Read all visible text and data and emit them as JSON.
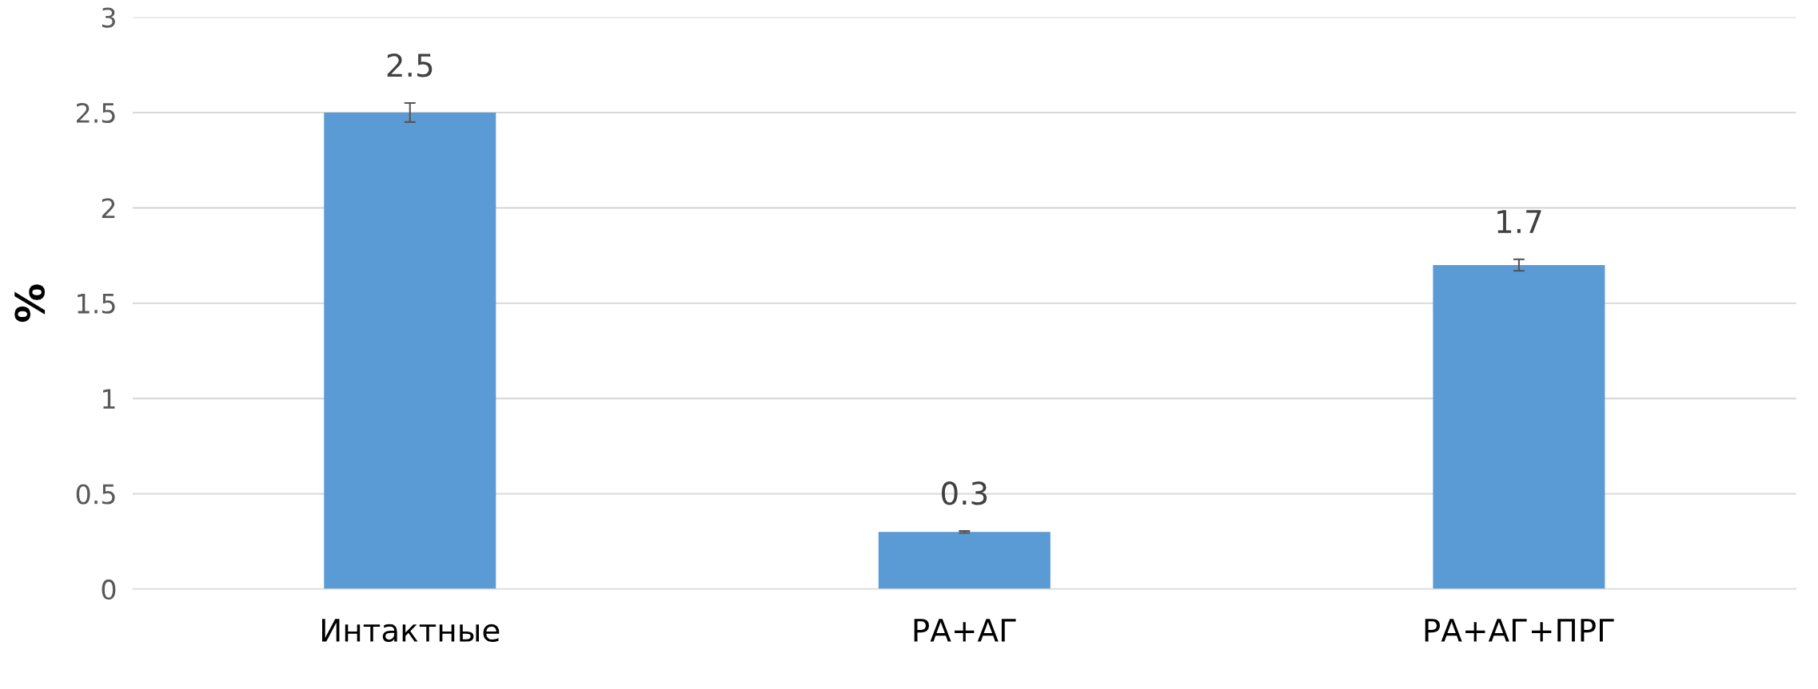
{
  "chart_data": {
    "type": "bar",
    "ylabel": "%",
    "categories": [
      "Интактные",
      "РА+АГ",
      "РА+АГ+ПРГ"
    ],
    "values": [
      2.5,
      0.3,
      1.7
    ],
    "errors": [
      0.05,
      0.005,
      0.03
    ],
    "color": "#5b9bd5",
    "ylim": [
      0,
      3
    ],
    "yticks": [
      0,
      0.5,
      1,
      1.5,
      2,
      2.5,
      3
    ],
    "grid": "y",
    "data_labels": true
  }
}
